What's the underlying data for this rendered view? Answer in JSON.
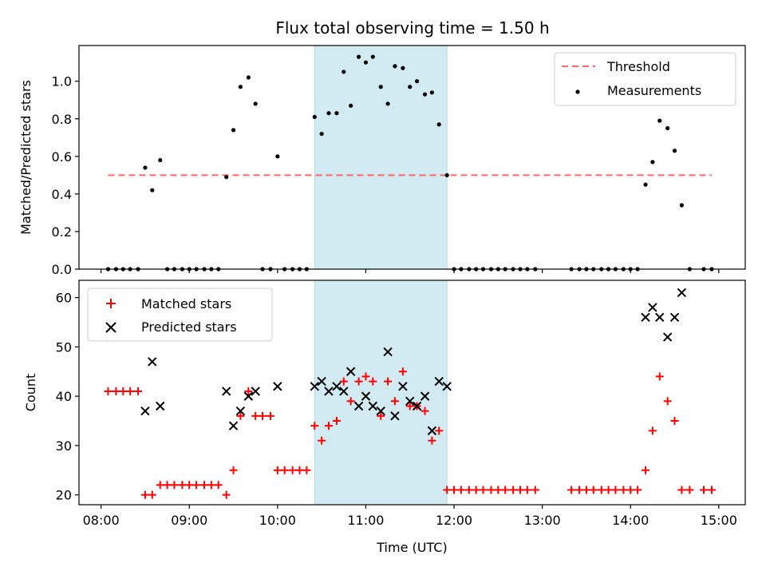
{
  "chart_data": [
    {
      "type": "scatter",
      "title": "Flux total observing time = 1.50 h",
      "xlabel": "",
      "ylabel": "Matched/Predicted stars",
      "xlim": [
        7.75,
        15.3
      ],
      "ylim": [
        0,
        1.19
      ],
      "yticks": [
        0.0,
        0.2,
        0.4,
        0.6,
        0.8,
        1.0
      ],
      "ytick_labels": [
        "0.0",
        "0.2",
        "0.4",
        "0.6",
        "0.8",
        "1.0"
      ],
      "legend_position": "top-right",
      "shaded_region": {
        "x0": 10.42,
        "x1": 11.92,
        "color": "#add8e6"
      },
      "threshold": {
        "name": "Threshold",
        "y": 0.5,
        "x0": 8.08,
        "x1": 14.92,
        "color": "#ff6666"
      },
      "series": [
        {
          "name": "Measurements",
          "color": "#000000",
          "marker": "dot",
          "points": [
            [
              8.08,
              0
            ],
            [
              8.17,
              0
            ],
            [
              8.25,
              0
            ],
            [
              8.33,
              0
            ],
            [
              8.42,
              0
            ],
            [
              8.5,
              0.54
            ],
            [
              8.58,
              0.42
            ],
            [
              8.67,
              0.58
            ],
            [
              8.75,
              0
            ],
            [
              8.83,
              0
            ],
            [
              8.92,
              0
            ],
            [
              9.0,
              0
            ],
            [
              9.08,
              0
            ],
            [
              9.17,
              0
            ],
            [
              9.25,
              0
            ],
            [
              9.33,
              0
            ],
            [
              9.42,
              0.49
            ],
            [
              9.5,
              0.74
            ],
            [
              9.58,
              0.97
            ],
            [
              9.67,
              1.02
            ],
            [
              9.75,
              0.88
            ],
            [
              9.83,
              0
            ],
            [
              9.92,
              0
            ],
            [
              10.0,
              0.6
            ],
            [
              10.08,
              0
            ],
            [
              10.17,
              0
            ],
            [
              10.25,
              0
            ],
            [
              10.33,
              0
            ],
            [
              10.42,
              0.81
            ],
            [
              10.5,
              0.72
            ],
            [
              10.58,
              0.83
            ],
            [
              10.67,
              0.83
            ],
            [
              10.75,
              1.05
            ],
            [
              10.83,
              0.87
            ],
            [
              10.92,
              1.13
            ],
            [
              11.0,
              1.1
            ],
            [
              11.08,
              1.13
            ],
            [
              11.17,
              0.97
            ],
            [
              11.25,
              0.88
            ],
            [
              11.33,
              1.08
            ],
            [
              11.42,
              1.07
            ],
            [
              11.5,
              0.97
            ],
            [
              11.58,
              1.0
            ],
            [
              11.67,
              0.93
            ],
            [
              11.75,
              0.94
            ],
            [
              11.83,
              0.77
            ],
            [
              11.92,
              0.5
            ],
            [
              12.0,
              0
            ],
            [
              12.08,
              0
            ],
            [
              12.17,
              0
            ],
            [
              12.25,
              0
            ],
            [
              12.33,
              0
            ],
            [
              12.42,
              0
            ],
            [
              12.5,
              0
            ],
            [
              12.58,
              0
            ],
            [
              12.67,
              0
            ],
            [
              12.75,
              0
            ],
            [
              12.83,
              0
            ],
            [
              12.92,
              0
            ],
            [
              13.33,
              0
            ],
            [
              13.42,
              0
            ],
            [
              13.5,
              0
            ],
            [
              13.58,
              0
            ],
            [
              13.67,
              0
            ],
            [
              13.75,
              0
            ],
            [
              13.83,
              0
            ],
            [
              13.92,
              0
            ],
            [
              14.0,
              0
            ],
            [
              14.08,
              0
            ],
            [
              14.17,
              0.45
            ],
            [
              14.25,
              0.57
            ],
            [
              14.33,
              0.79
            ],
            [
              14.42,
              0.75
            ],
            [
              14.5,
              0.63
            ],
            [
              14.58,
              0.34
            ],
            [
              14.67,
              0
            ],
            [
              14.83,
              0
            ],
            [
              14.92,
              0
            ]
          ]
        }
      ]
    },
    {
      "type": "scatter",
      "title": "",
      "xlabel": "Time (UTC)",
      "ylabel": "Count",
      "xlim": [
        7.75,
        15.3
      ],
      "ylim": [
        18,
        63.5
      ],
      "yticks": [
        20,
        30,
        40,
        50,
        60
      ],
      "ytick_labels": [
        "20",
        "30",
        "40",
        "50",
        "60"
      ],
      "xticks": [
        8,
        9,
        10,
        11,
        12,
        13,
        14,
        15
      ],
      "xtick_labels": [
        "08:00",
        "09:00",
        "10:00",
        "11:00",
        "12:00",
        "13:00",
        "14:00",
        "15:00"
      ],
      "legend_position": "top-left",
      "shaded_region": {
        "x0": 10.42,
        "x1": 11.92,
        "color": "#add8e6"
      },
      "series": [
        {
          "name": "Matched stars",
          "color": "#ff0000",
          "marker": "plus",
          "points": [
            [
              8.08,
              41
            ],
            [
              8.17,
              41
            ],
            [
              8.25,
              41
            ],
            [
              8.33,
              41
            ],
            [
              8.42,
              41
            ],
            [
              8.5,
              20
            ],
            [
              8.58,
              20
            ],
            [
              8.67,
              22
            ],
            [
              8.75,
              22
            ],
            [
              8.83,
              22
            ],
            [
              8.92,
              22
            ],
            [
              9.0,
              22
            ],
            [
              9.08,
              22
            ],
            [
              9.17,
              22
            ],
            [
              9.25,
              22
            ],
            [
              9.33,
              22
            ],
            [
              9.42,
              20
            ],
            [
              9.5,
              25
            ],
            [
              9.58,
              36
            ],
            [
              9.67,
              41
            ],
            [
              9.75,
              36
            ],
            [
              9.83,
              36
            ],
            [
              9.92,
              36
            ],
            [
              10.0,
              25
            ],
            [
              10.08,
              25
            ],
            [
              10.17,
              25
            ],
            [
              10.25,
              25
            ],
            [
              10.33,
              25
            ],
            [
              10.42,
              34
            ],
            [
              10.5,
              31
            ],
            [
              10.58,
              34
            ],
            [
              10.67,
              35
            ],
            [
              10.75,
              43
            ],
            [
              10.83,
              39
            ],
            [
              10.92,
              43
            ],
            [
              11.0,
              44
            ],
            [
              11.08,
              43
            ],
            [
              11.17,
              36
            ],
            [
              11.25,
              43
            ],
            [
              11.33,
              39
            ],
            [
              11.42,
              45
            ],
            [
              11.5,
              38
            ],
            [
              11.58,
              38
            ],
            [
              11.67,
              37
            ],
            [
              11.75,
              31
            ],
            [
              11.83,
              33
            ],
            [
              11.92,
              21
            ],
            [
              12.0,
              21
            ],
            [
              12.08,
              21
            ],
            [
              12.17,
              21
            ],
            [
              12.25,
              21
            ],
            [
              12.33,
              21
            ],
            [
              12.42,
              21
            ],
            [
              12.5,
              21
            ],
            [
              12.58,
              21
            ],
            [
              12.67,
              21
            ],
            [
              12.75,
              21
            ],
            [
              12.83,
              21
            ],
            [
              12.92,
              21
            ],
            [
              13.33,
              21
            ],
            [
              13.42,
              21
            ],
            [
              13.5,
              21
            ],
            [
              13.58,
              21
            ],
            [
              13.67,
              21
            ],
            [
              13.75,
              21
            ],
            [
              13.83,
              21
            ],
            [
              13.92,
              21
            ],
            [
              14.0,
              21
            ],
            [
              14.08,
              21
            ],
            [
              14.17,
              25
            ],
            [
              14.25,
              33
            ],
            [
              14.33,
              44
            ],
            [
              14.42,
              39
            ],
            [
              14.5,
              35
            ],
            [
              14.58,
              21
            ],
            [
              14.67,
              21
            ],
            [
              14.83,
              21
            ],
            [
              14.92,
              21
            ]
          ]
        },
        {
          "name": "Predicted stars",
          "color": "#000000",
          "marker": "x",
          "points": [
            [
              8.5,
              37
            ],
            [
              8.58,
              47
            ],
            [
              8.67,
              38
            ],
            [
              9.42,
              41
            ],
            [
              9.5,
              34
            ],
            [
              9.58,
              37
            ],
            [
              9.67,
              40
            ],
            [
              9.75,
              41
            ],
            [
              10.0,
              42
            ],
            [
              10.42,
              42
            ],
            [
              10.5,
              43
            ],
            [
              10.58,
              41
            ],
            [
              10.67,
              42
            ],
            [
              10.75,
              41
            ],
            [
              10.83,
              45
            ],
            [
              10.92,
              38
            ],
            [
              11.0,
              40
            ],
            [
              11.08,
              38
            ],
            [
              11.17,
              37
            ],
            [
              11.25,
              49
            ],
            [
              11.33,
              36
            ],
            [
              11.42,
              42
            ],
            [
              11.5,
              39
            ],
            [
              11.58,
              38
            ],
            [
              11.67,
              40
            ],
            [
              11.75,
              33
            ],
            [
              11.83,
              43
            ],
            [
              11.92,
              42
            ],
            [
              14.17,
              56
            ],
            [
              14.25,
              58
            ],
            [
              14.33,
              56
            ],
            [
              14.42,
              52
            ],
            [
              14.5,
              56
            ],
            [
              14.58,
              61
            ]
          ]
        }
      ]
    }
  ]
}
